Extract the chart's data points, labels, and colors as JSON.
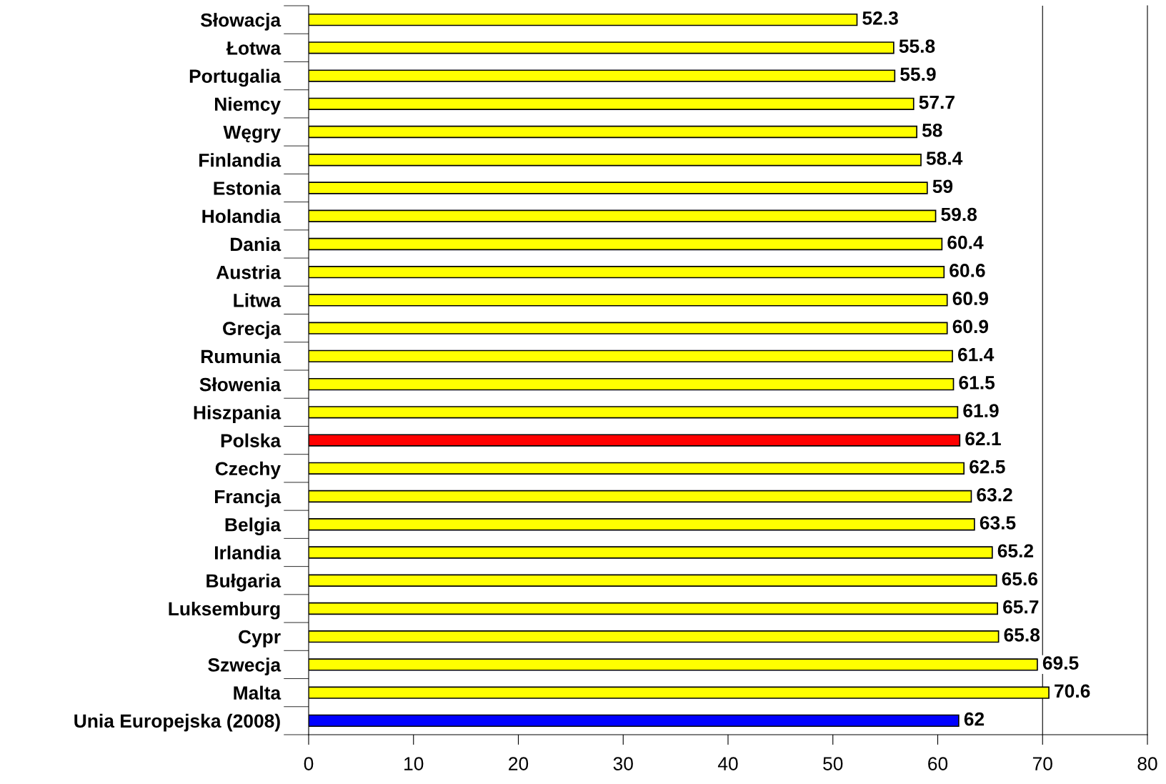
{
  "chart_data": {
    "type": "bar",
    "orientation": "horizontal",
    "categories": [
      "Słowacja",
      "Łotwa",
      "Portugalia",
      "Niemcy",
      "Węgry",
      "Finlandia",
      "Estonia",
      "Holandia",
      "Dania",
      "Austria",
      "Litwa",
      "Grecja",
      "Rumunia",
      "Słowenia",
      "Hiszpania",
      "Polska",
      "Czechy",
      "Francja",
      "Belgia",
      "Irlandia",
      "Bułgaria",
      "Luksemburg",
      "Cypr",
      "Szwecja",
      "Malta",
      "Unia Europejska (2008)"
    ],
    "values": [
      52.3,
      55.8,
      55.9,
      57.7,
      58,
      58.4,
      59,
      59.8,
      60.4,
      60.6,
      60.9,
      60.9,
      61.4,
      61.5,
      61.9,
      62.1,
      62.5,
      63.2,
      63.5,
      65.2,
      65.6,
      65.7,
      65.8,
      69.5,
      70.6,
      62
    ],
    "colors": [
      "#ffff00",
      "#ffff00",
      "#ffff00",
      "#ffff00",
      "#ffff00",
      "#ffff00",
      "#ffff00",
      "#ffff00",
      "#ffff00",
      "#ffff00",
      "#ffff00",
      "#ffff00",
      "#ffff00",
      "#ffff00",
      "#ffff00",
      "#ff0000",
      "#ffff00",
      "#ffff00",
      "#ffff00",
      "#ffff00",
      "#ffff00",
      "#ffff00",
      "#ffff00",
      "#ffff00",
      "#ffff00",
      "#0000ff"
    ],
    "data_labels": true,
    "xlim": [
      0,
      80
    ],
    "xticks": [
      0,
      10,
      20,
      30,
      40,
      50,
      60,
      70,
      80
    ],
    "ref_lines": [
      {
        "axis": "x",
        "value": 70,
        "color": "#000000"
      }
    ],
    "grid": false
  }
}
